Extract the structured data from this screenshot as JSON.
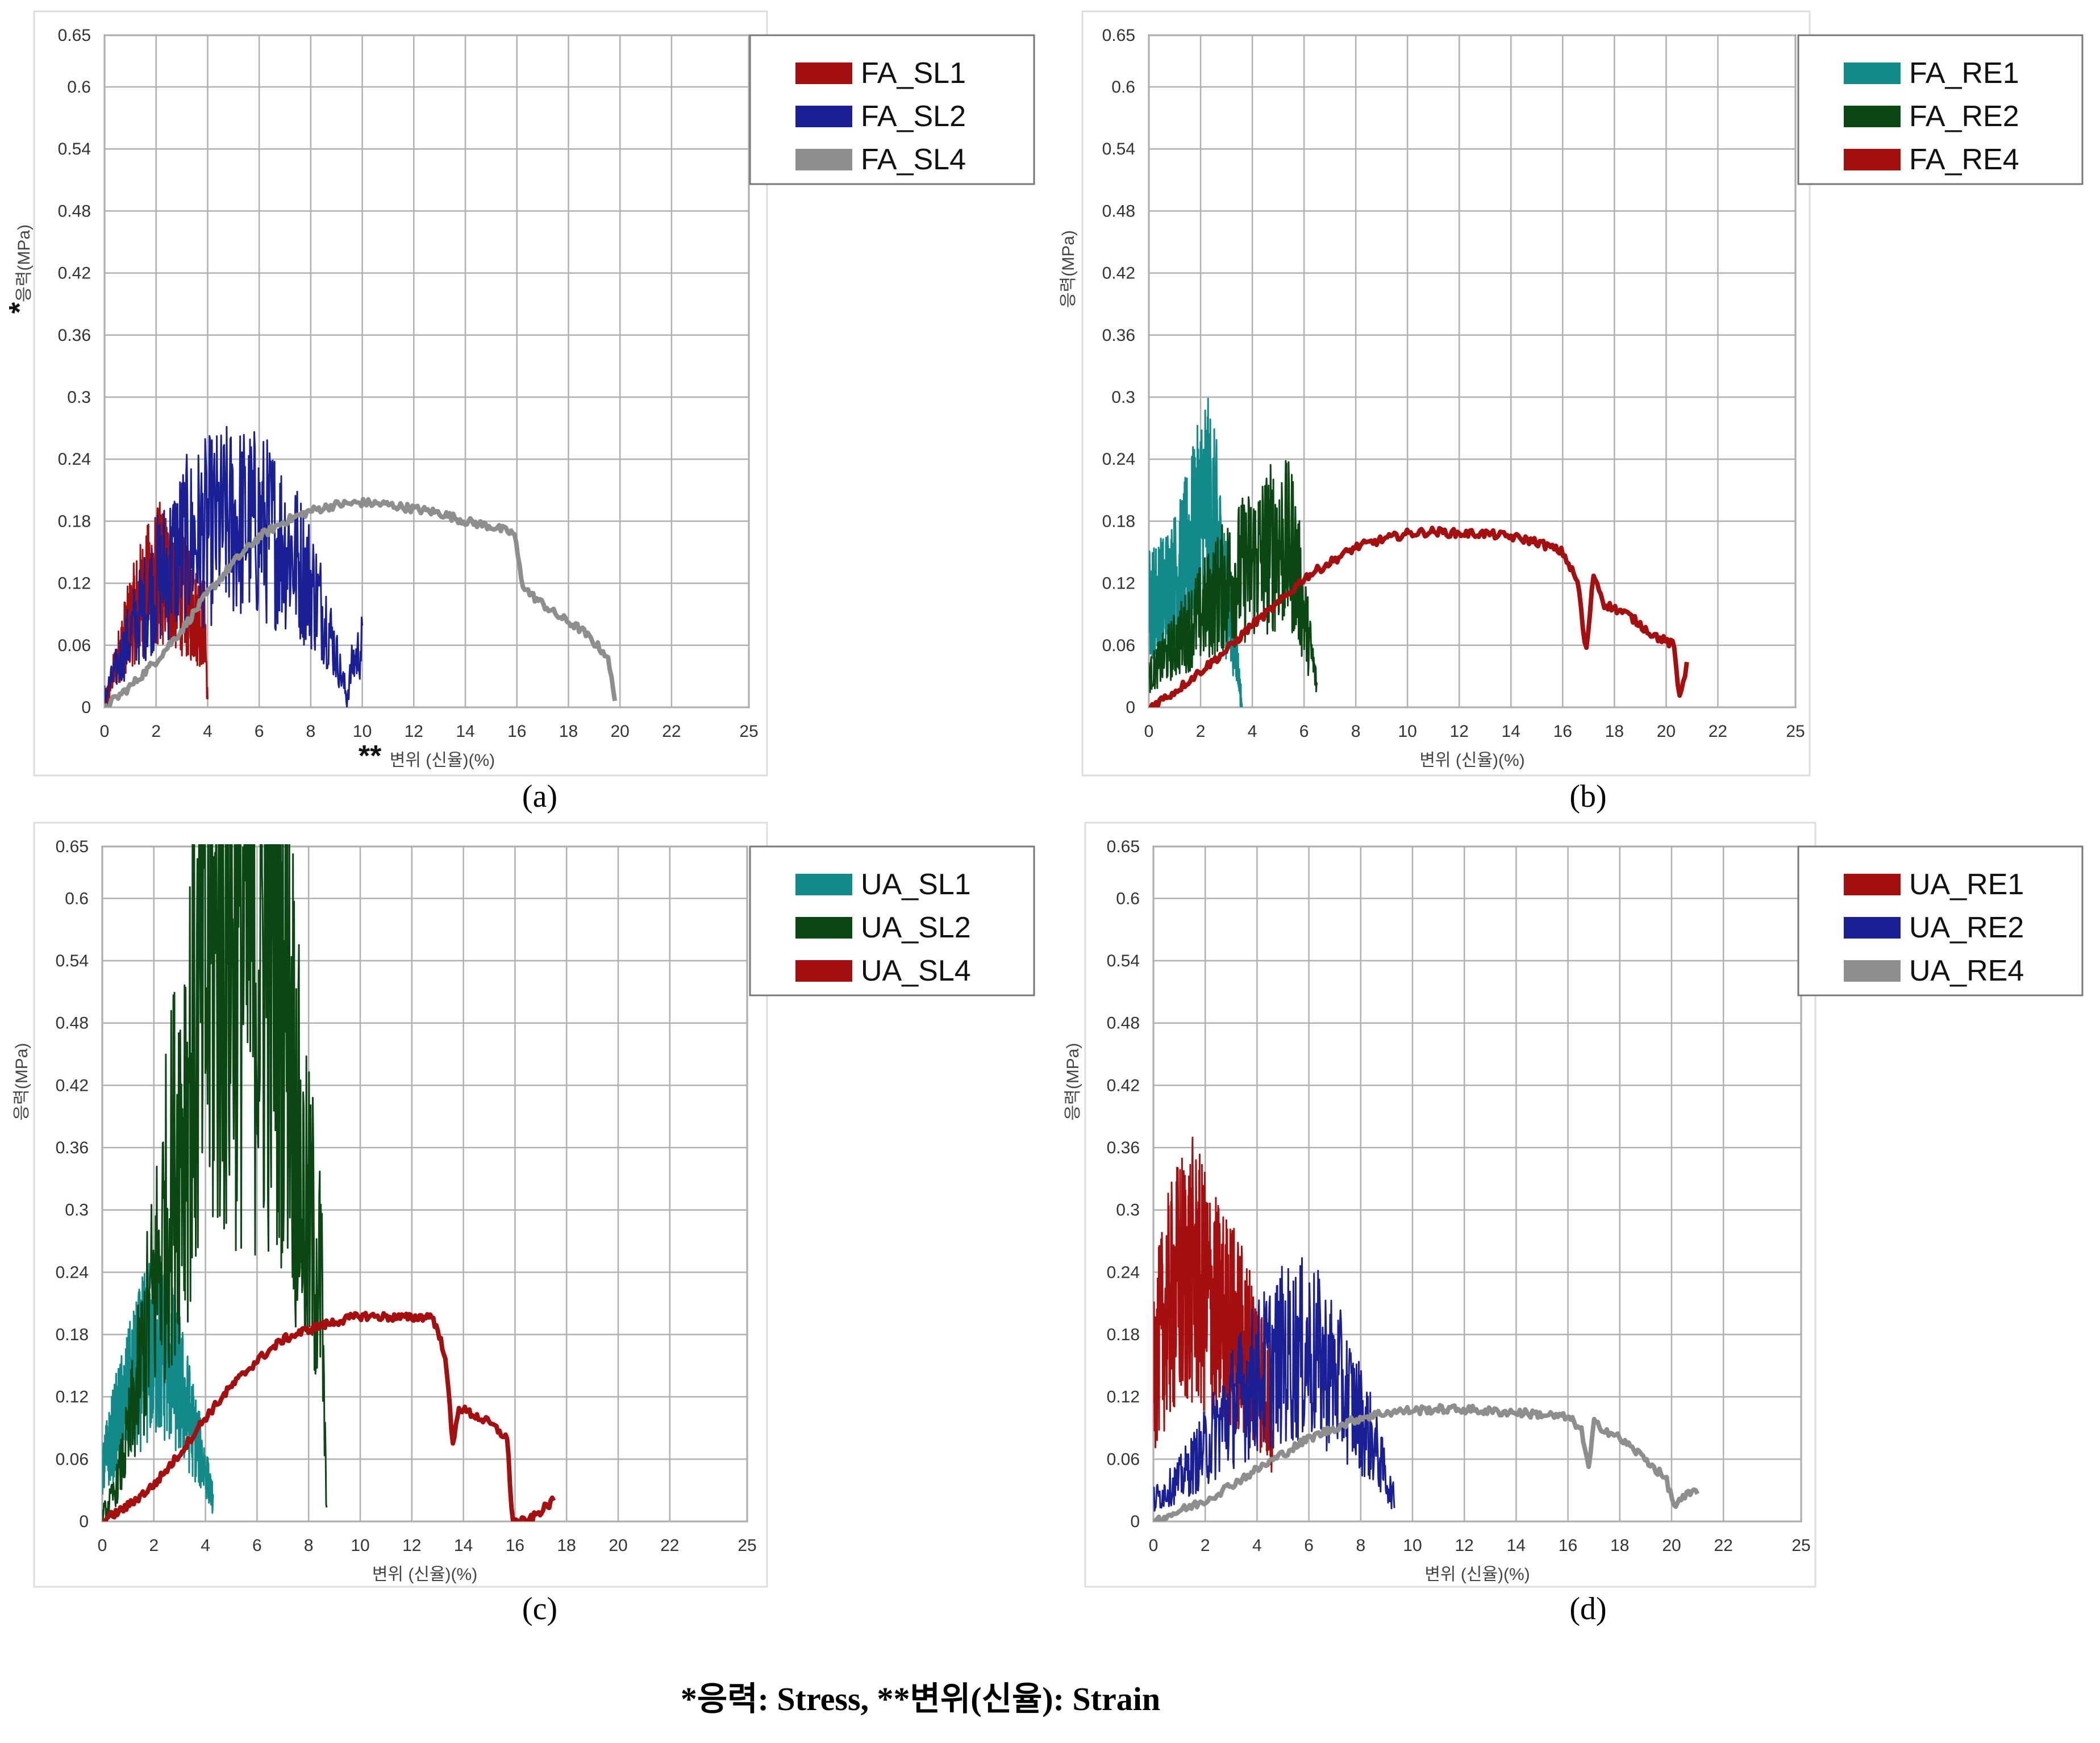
{
  "chart_data": [
    {
      "id": "a",
      "type": "line",
      "panel_label": "(a)",
      "xlabel_prefix": "**",
      "xlabel": "변위 (신율)(%)",
      "ylabel_prefix": "*",
      "ylabel": "응력(MPa)",
      "xlim": [
        0,
        25
      ],
      "ylim": [
        0,
        0.65
      ],
      "xticks": [
        "0",
        "2",
        "4",
        "6",
        "8",
        "10",
        "12",
        "14",
        "16",
        "18",
        "20",
        "22",
        "25"
      ],
      "yticks": [
        "0",
        "0.06",
        "0.12",
        "0.18",
        "0.24",
        "0.3",
        "0.36",
        "0.42",
        "0.48",
        "0.54",
        "0.6",
        "0.65"
      ],
      "grid": true,
      "legend_position": "top-right",
      "series": [
        {
          "name": "FA_SL1",
          "color": "#a50f0f",
          "noisy": true,
          "points": [
            [
              0,
              0
            ],
            [
              0.3,
              0.03
            ],
            [
              0.8,
              0.07
            ],
            [
              1.3,
              0.1
            ],
            [
              1.8,
              0.12
            ],
            [
              2.2,
              0.13
            ],
            [
              2.6,
              0.12
            ],
            [
              3.0,
              0.11
            ],
            [
              3.5,
              0.09
            ],
            [
              3.9,
              0.08
            ],
            [
              4.0,
              0
            ]
          ]
        },
        {
          "name": "FA_SL2",
          "color": "#1a1f96",
          "noisy": true,
          "points": [
            [
              0,
              0.01
            ],
            [
              1,
              0.07
            ],
            [
              2,
              0.12
            ],
            [
              3,
              0.155
            ],
            [
              4,
              0.17
            ],
            [
              5,
              0.18
            ],
            [
              6,
              0.175
            ],
            [
              7,
              0.16
            ],
            [
              8,
              0.12
            ],
            [
              8.6,
              0.085
            ],
            [
              9,
              0.05
            ],
            [
              9.4,
              0.01
            ],
            [
              9.6,
              0.04
            ],
            [
              10,
              0.06
            ]
          ]
        },
        {
          "name": "FA_SL4",
          "color": "#8e8e8e",
          "noisy": false,
          "points": [
            [
              0,
              0
            ],
            [
              1,
              0.02
            ],
            [
              2,
              0.045
            ],
            [
              3,
              0.075
            ],
            [
              4,
              0.11
            ],
            [
              5,
              0.14
            ],
            [
              6,
              0.165
            ],
            [
              7,
              0.18
            ],
            [
              8,
              0.19
            ],
            [
              9,
              0.196
            ],
            [
              10,
              0.198
            ],
            [
              11,
              0.196
            ],
            [
              12,
              0.192
            ],
            [
              13,
              0.188
            ],
            [
              14,
              0.18
            ],
            [
              15,
              0.175
            ],
            [
              15.9,
              0.168
            ],
            [
              16.2,
              0.12
            ],
            [
              16.5,
              0.11
            ],
            [
              17.5,
              0.09
            ],
            [
              18.5,
              0.075
            ],
            [
              19.5,
              0.05
            ],
            [
              19.8,
              0.01
            ]
          ]
        }
      ]
    },
    {
      "id": "b",
      "type": "line",
      "panel_label": "(b)",
      "xlabel": "변위 (신율)(%)",
      "ylabel": "응력(MPa)",
      "xlim": [
        0,
        25
      ],
      "ylim": [
        0,
        0.65
      ],
      "xticks": [
        "0",
        "2",
        "4",
        "6",
        "8",
        "10",
        "12",
        "14",
        "16",
        "18",
        "20",
        "22",
        "25"
      ],
      "yticks": [
        "0",
        "0.06",
        "0.12",
        "0.18",
        "0.24",
        "0.3",
        "0.36",
        "0.42",
        "0.48",
        "0.54",
        "0.6",
        "0.65"
      ],
      "grid": true,
      "legend_position": "top-right",
      "series": [
        {
          "name": "FA_RE1",
          "color": "#138a8a",
          "noisy": true,
          "points": [
            [
              0,
              0.1
            ],
            [
              0.6,
              0.11
            ],
            [
              1.2,
              0.13
            ],
            [
              1.8,
              0.17
            ],
            [
              2.2,
              0.2
            ],
            [
              2.6,
              0.17
            ],
            [
              3.0,
              0.1
            ],
            [
              3.4,
              0.05
            ],
            [
              3.6,
              0
            ]
          ]
        },
        {
          "name": "FA_RE2",
          "color": "#0b4713",
          "noisy": true,
          "points": [
            [
              0,
              0.03
            ],
            [
              1,
              0.06
            ],
            [
              2,
              0.09
            ],
            [
              3,
              0.12
            ],
            [
              4,
              0.14
            ],
            [
              5,
              0.16
            ],
            [
              5.6,
              0.15
            ],
            [
              6,
              0.09
            ],
            [
              6.3,
              0.05
            ],
            [
              6.5,
              0.02
            ]
          ]
        },
        {
          "name": "FA_RE4",
          "color": "#a50f0f",
          "noisy": false,
          "points": [
            [
              0,
              0
            ],
            [
              1,
              0.015
            ],
            [
              2,
              0.035
            ],
            [
              3,
              0.055
            ],
            [
              4,
              0.08
            ],
            [
              5,
              0.1
            ],
            [
              6,
              0.125
            ],
            [
              7,
              0.14
            ],
            [
              8,
              0.155
            ],
            [
              9,
              0.162
            ],
            [
              10,
              0.168
            ],
            [
              11,
              0.17
            ],
            [
              12,
              0.168
            ],
            [
              13,
              0.168
            ],
            [
              14,
              0.165
            ],
            [
              15,
              0.16
            ],
            [
              16,
              0.15
            ],
            [
              16.6,
              0.12
            ],
            [
              16.9,
              0.05
            ],
            [
              17.2,
              0.13
            ],
            [
              17.6,
              0.1
            ],
            [
              18.5,
              0.09
            ],
            [
              19.5,
              0.07
            ],
            [
              20.3,
              0.06
            ],
            [
              20.5,
              0.01
            ],
            [
              20.8,
              0.04
            ]
          ]
        }
      ]
    },
    {
      "id": "c",
      "type": "line",
      "panel_label": "(c)",
      "xlabel": "변위 (신율)(%)",
      "ylabel": "응력(MPa)",
      "xlim": [
        0,
        25
      ],
      "ylim": [
        0,
        0.65
      ],
      "xticks": [
        "0",
        "2",
        "4",
        "6",
        "8",
        "10",
        "12",
        "14",
        "16",
        "18",
        "20",
        "22",
        "25"
      ],
      "yticks": [
        "0",
        "0.06",
        "0.12",
        "0.18",
        "0.24",
        "0.3",
        "0.36",
        "0.42",
        "0.48",
        "0.54",
        "0.6",
        "0.65"
      ],
      "grid": true,
      "legend_position": "top-right",
      "series": [
        {
          "name": "UA_SL1",
          "color": "#138a8a",
          "noisy": true,
          "points": [
            [
              0,
              0.05
            ],
            [
              0.5,
              0.09
            ],
            [
              1,
              0.12
            ],
            [
              1.5,
              0.15
            ],
            [
              2,
              0.17
            ],
            [
              2.5,
              0.16
            ],
            [
              3,
              0.13
            ],
            [
              3.5,
              0.09
            ],
            [
              4,
              0.05
            ],
            [
              4.3,
              0.02
            ]
          ]
        },
        {
          "name": "UA_SL2",
          "color": "#0b4713",
          "noisy": true,
          "points": [
            [
              0,
              0
            ],
            [
              0.5,
              0.03
            ],
            [
              1,
              0.08
            ],
            [
              1.5,
              0.15
            ],
            [
              2,
              0.22
            ],
            [
              2.5,
              0.3
            ],
            [
              3,
              0.38
            ],
            [
              3.5,
              0.45
            ],
            [
              4,
              0.51
            ],
            [
              4.5,
              0.55
            ],
            [
              5,
              0.565
            ],
            [
              5.5,
              0.56
            ],
            [
              6,
              0.55
            ],
            [
              6.5,
              0.545
            ],
            [
              7,
              0.54
            ],
            [
              7.2,
              0.53
            ],
            [
              7.5,
              0.4
            ],
            [
              7.8,
              0.3
            ],
            [
              8.2,
              0.27
            ],
            [
              8.5,
              0.22
            ],
            [
              8.7,
              0
            ]
          ]
        },
        {
          "name": "UA_SL4",
          "color": "#a50f0f",
          "noisy": false,
          "points": [
            [
              0,
              0
            ],
            [
              1,
              0.015
            ],
            [
              2,
              0.035
            ],
            [
              3,
              0.065
            ],
            [
              4,
              0.1
            ],
            [
              5,
              0.13
            ],
            [
              6,
              0.155
            ],
            [
              7,
              0.175
            ],
            [
              8,
              0.185
            ],
            [
              9,
              0.192
            ],
            [
              10,
              0.198
            ],
            [
              11,
              0.197
            ],
            [
              12,
              0.196
            ],
            [
              12.8,
              0.198
            ],
            [
              13.3,
              0.16
            ],
            [
              13.6,
              0.07
            ],
            [
              13.8,
              0.11
            ],
            [
              15,
              0.095
            ],
            [
              15.7,
              0.08
            ],
            [
              15.9,
              0.0
            ],
            [
              16.5,
              0.0
            ],
            [
              17,
              0.01
            ],
            [
              17.5,
              0.02
            ]
          ]
        }
      ]
    },
    {
      "id": "d",
      "type": "line",
      "panel_label": "(d)",
      "xlabel": "변위 (신율)(%)",
      "ylabel": "응력(MPa)",
      "xlim": [
        0,
        25
      ],
      "ylim": [
        0,
        0.65
      ],
      "xticks": [
        "0",
        "2",
        "4",
        "6",
        "8",
        "10",
        "12",
        "14",
        "16",
        "18",
        "20",
        "22",
        "25"
      ],
      "yticks": [
        "0",
        "0.06",
        "0.12",
        "0.18",
        "0.24",
        "0.3",
        "0.36",
        "0.42",
        "0.48",
        "0.54",
        "0.6",
        "0.65"
      ],
      "grid": true,
      "legend_position": "top-right",
      "series": [
        {
          "name": "UA_RE1",
          "color": "#a50f0f",
          "noisy": true,
          "points": [
            [
              0,
              0.15
            ],
            [
              0.5,
              0.2
            ],
            [
              1,
              0.23
            ],
            [
              1.5,
              0.24
            ],
            [
              2,
              0.22
            ],
            [
              2.5,
              0.2
            ],
            [
              3,
              0.19
            ],
            [
              3.5,
              0.17
            ],
            [
              4,
              0.15
            ],
            [
              4.5,
              0.12
            ],
            [
              4.6,
              0.05
            ]
          ]
        },
        {
          "name": "UA_RE2",
          "color": "#1a1f96",
          "noisy": true,
          "points": [
            [
              0,
              0.02
            ],
            [
              1,
              0.04
            ],
            [
              2,
              0.07
            ],
            [
              3,
              0.11
            ],
            [
              4,
              0.14
            ],
            [
              5,
              0.16
            ],
            [
              6,
              0.165
            ],
            [
              7,
              0.14
            ],
            [
              8,
              0.1
            ],
            [
              8.6,
              0.07
            ],
            [
              9,
              0.04
            ],
            [
              9.3,
              0.02
            ]
          ]
        },
        {
          "name": "UA_RE4",
          "color": "#8e8e8e",
          "noisy": false,
          "points": [
            [
              0,
              0
            ],
            [
              1,
              0.01
            ],
            [
              2,
              0.02
            ],
            [
              3,
              0.035
            ],
            [
              4,
              0.05
            ],
            [
              5,
              0.065
            ],
            [
              6,
              0.08
            ],
            [
              7,
              0.09
            ],
            [
              8,
              0.1
            ],
            [
              9,
              0.105
            ],
            [
              10,
              0.107
            ],
            [
              11,
              0.108
            ],
            [
              12,
              0.108
            ],
            [
              13,
              0.106
            ],
            [
              14,
              0.105
            ],
            [
              15,
              0.103
            ],
            [
              16,
              0.1
            ],
            [
              16.5,
              0.09
            ],
            [
              16.8,
              0.05
            ],
            [
              17,
              0.095
            ],
            [
              18,
              0.08
            ],
            [
              19,
              0.06
            ],
            [
              19.8,
              0.04
            ],
            [
              20.1,
              0.015
            ],
            [
              20.6,
              0.025
            ],
            [
              21,
              0.03
            ]
          ]
        }
      ]
    }
  ],
  "caption": "*응력: Stress, **변위(신율): Strain"
}
